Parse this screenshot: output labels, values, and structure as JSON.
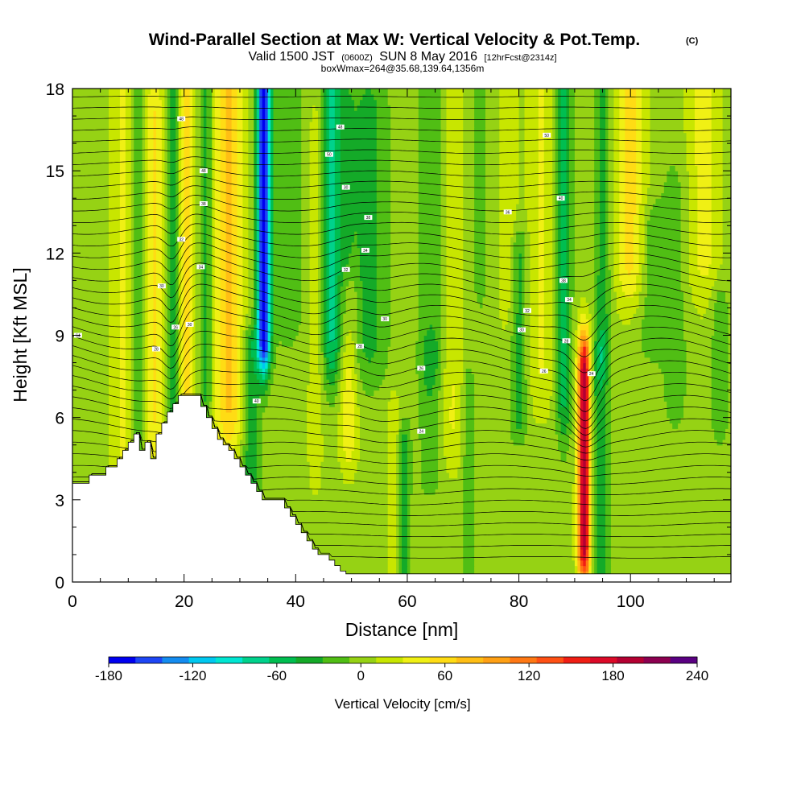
{
  "chart_data": {
    "type": "heatmap",
    "title": "Wind-Parallel Section at Max W: Vertical Velocity & Pot.Temp.",
    "title_mark": "(C)",
    "subtitle_main_a": "Valid 1500 JST",
    "subtitle_zulu": "(0600Z)",
    "subtitle_main_b": "SUN 8 May 2016",
    "subtitle_fcst": "[12hrFcst@2314z]",
    "subtitle2": "boxWmax=264@35.68,139.64,1356m",
    "xlabel": "Distance [nm]",
    "ylabel": "Height [Kft MSL]",
    "xlim": [
      0,
      118
    ],
    "ylim": [
      0,
      18
    ],
    "x_ticks": [
      "0",
      "20",
      "40",
      "60",
      "80",
      "100"
    ],
    "y_ticks": [
      "0",
      "3",
      "6",
      "9",
      "12",
      "15",
      "18"
    ],
    "colorbar": {
      "label": "Vertical Velocity [cm/s]",
      "ticks": [
        "-180",
        "-120",
        "-60",
        "0",
        "60",
        "120",
        "180",
        "240"
      ],
      "min": -180,
      "max": 240,
      "step": 20,
      "colors": [
        "#0000f0",
        "#1e46f5",
        "#148cf0",
        "#00c8f0",
        "#00e6d2",
        "#00d28c",
        "#00be50",
        "#14aa28",
        "#50be14",
        "#96d214",
        "#c8e600",
        "#f0f014",
        "#ffdc14",
        "#ffbe14",
        "#ffa014",
        "#ff7814",
        "#ff5014",
        "#f01e14",
        "#dc0a28",
        "#b40032",
        "#8c0050",
        "#5a0082"
      ]
    },
    "terrain": {
      "x": [
        0,
        3,
        3,
        6,
        6,
        8,
        8,
        9,
        9,
        10,
        10,
        11,
        11,
        12,
        12,
        13,
        13,
        14,
        14,
        15,
        15,
        16,
        16,
        17,
        17,
        18,
        18,
        19,
        19,
        20,
        20,
        21,
        21,
        22,
        22,
        23,
        23,
        24,
        24,
        25,
        25,
        26,
        26,
        27,
        27,
        28,
        28,
        29,
        29,
        30,
        30,
        31,
        31,
        32,
        32,
        33,
        33,
        34,
        34,
        35,
        35,
        36,
        36,
        37,
        37,
        38,
        38,
        39,
        39,
        40,
        40,
        41,
        41,
        42,
        42,
        43,
        43,
        44,
        44,
        45,
        45,
        46,
        46,
        47,
        47,
        48,
        48,
        49,
        49,
        50,
        50,
        51,
        51,
        52,
        52,
        118
      ],
      "y": [
        3.6,
        3.6,
        3.9,
        3.9,
        4.2,
        4.2,
        4.5,
        4.5,
        4.8,
        4.8,
        5.1,
        5.1,
        5.4,
        5.4,
        4.8,
        4.8,
        5.1,
        5.1,
        4.5,
        4.5,
        5.4,
        5.4,
        5.8,
        5.8,
        6.2,
        6.2,
        6.5,
        6.5,
        6.8,
        6.8,
        6.8,
        6.8,
        6.8,
        6.8,
        6.8,
        6.8,
        6.4,
        6.4,
        6.0,
        6.0,
        5.6,
        5.6,
        5.2,
        5.2,
        5.0,
        5.0,
        4.8,
        4.8,
        4.5,
        4.5,
        4.2,
        4.2,
        3.9,
        3.9,
        3.6,
        3.6,
        3.3,
        3.3,
        3.0,
        3.0,
        3.0,
        3.0,
        3.0,
        3.0,
        3.0,
        3.0,
        2.7,
        2.7,
        2.4,
        2.4,
        2.1,
        2.1,
        1.8,
        1.8,
        1.5,
        1.5,
        1.2,
        1.2,
        1.0,
        1.0,
        1.0,
        1.0,
        0.8,
        0.8,
        0.6,
        0.6,
        0.4,
        0.4,
        0.3,
        0.3,
        0.3,
        0.3,
        0.3,
        0.3,
        0.3,
        0.3
      ]
    },
    "w_features": [
      {
        "x": 9,
        "w": 2.2,
        "y0": 3.0,
        "y1": 18.0,
        "wb": 1.0,
        "a": 30
      },
      {
        "x": 12,
        "w": 1.4,
        "y0": 4.0,
        "y1": 18.0,
        "wb": 1.0,
        "a": -35
      },
      {
        "x": 14.5,
        "w": 1.8,
        "y0": 6.0,
        "y1": 17.0,
        "wb": 2.0,
        "a": 50
      },
      {
        "x": 18,
        "w": 1.1,
        "y0": 6.0,
        "y1": 18.0,
        "wb": 1.0,
        "a": -55
      },
      {
        "x": 20.5,
        "w": 1.4,
        "y0": 7.0,
        "y1": 18.0,
        "wb": 1.2,
        "a": 55
      },
      {
        "x": 24,
        "w": 1.2,
        "y0": 6.8,
        "y1": 18.0,
        "wb": 1.0,
        "a": -40
      },
      {
        "x": 28,
        "w": 2.6,
        "y0": 6.5,
        "y1": 18.0,
        "wb": 2.0,
        "a": 70
      },
      {
        "x": 34.3,
        "w": 1.2,
        "y0": 9.0,
        "y1": 18.0,
        "wb": 1.5,
        "a": -190
      },
      {
        "x": 32,
        "w": 1.5,
        "y0": 3.0,
        "y1": 8.5,
        "wb": 1.0,
        "a": -50
      },
      {
        "x": 38.5,
        "w": 3.5,
        "y0": 10.0,
        "y1": 18.0,
        "wb": 2.0,
        "a": -20
      },
      {
        "x": 43.5,
        "w": 1.4,
        "y0": 5.0,
        "y1": 16.0,
        "wb": 2.0,
        "a": 20
      },
      {
        "x": 46.5,
        "w": 1.6,
        "y0": 9.0,
        "y1": 18.0,
        "wb": 2.0,
        "a": -75
      },
      {
        "x": 49.5,
        "w": 1.6,
        "y0": 5.5,
        "y1": 10.0,
        "wb": 1.5,
        "a": 45
      },
      {
        "x": 49,
        "w": 1.4,
        "y0": 10.0,
        "y1": 17.0,
        "wb": 1.5,
        "a": -30
      },
      {
        "x": 53,
        "w": 3.5,
        "y0": 9.0,
        "y1": 17.0,
        "wb": 2.0,
        "a": -40
      },
      {
        "x": 57.5,
        "w": 1.0,
        "y0": 0.3,
        "y1": 6.0,
        "wb": 1.0,
        "a": 30
      },
      {
        "x": 59.5,
        "w": 1.1,
        "y0": 0.3,
        "y1": 5.0,
        "wb": 1.0,
        "a": -40
      },
      {
        "x": 64.5,
        "w": 2.4,
        "y0": 9.0,
        "y1": 18.0,
        "wb": 2.0,
        "a": -30
      },
      {
        "x": 64,
        "w": 2.0,
        "y0": 4.0,
        "y1": 8.0,
        "wb": 1.0,
        "a": -25
      },
      {
        "x": 68,
        "w": 2.0,
        "y0": 6.0,
        "y1": 18.0,
        "wb": 2.0,
        "a": 30
      },
      {
        "x": 71,
        "w": 1.0,
        "y0": 0.3,
        "y1": 7.0,
        "wb": 1.0,
        "a": -30
      },
      {
        "x": 73,
        "w": 2.0,
        "y0": 11.0,
        "y1": 18.0,
        "wb": 2.0,
        "a": -15
      },
      {
        "x": 78,
        "w": 1.6,
        "y0": 11.0,
        "y1": 18.0,
        "wb": 2.0,
        "a": 25
      },
      {
        "x": 80,
        "w": 1.5,
        "y0": 6.0,
        "y1": 12.0,
        "wb": 1.0,
        "a": -40
      },
      {
        "x": 84,
        "w": 2.5,
        "y0": 8.0,
        "y1": 18.0,
        "wb": 2.0,
        "a": 30
      },
      {
        "x": 88,
        "w": 1.4,
        "y0": 7.0,
        "y1": 18.0,
        "wb": 2.0,
        "a": -60
      },
      {
        "x": 91.7,
        "w": 1.1,
        "y0": 1.3,
        "y1": 7.7,
        "wb": 1.5,
        "a": 200
      },
      {
        "x": 94.5,
        "w": 1.6,
        "y0": 0.5,
        "y1": 8.0,
        "wb": 1.0,
        "a": -45
      },
      {
        "x": 95,
        "w": 1.3,
        "y0": 9.0,
        "y1": 18.0,
        "wb": 1.5,
        "a": -45
      },
      {
        "x": 100,
        "w": 2.5,
        "y0": 12.0,
        "y1": 18.0,
        "wb": 2.0,
        "a": 60
      },
      {
        "x": 104,
        "w": 3.0,
        "y0": 9.0,
        "y1": 13.0,
        "wb": 1.0,
        "a": -25
      },
      {
        "x": 108,
        "w": 2.5,
        "y0": 7.0,
        "y1": 14.0,
        "wb": 2.0,
        "a": -20
      },
      {
        "x": 113,
        "w": 3.0,
        "y0": 12.0,
        "y1": 18.0,
        "wb": 2.0,
        "a": 35
      },
      {
        "x": 116,
        "w": 1.5,
        "y0": 6.0,
        "y1": 10.0,
        "wb": 1.0,
        "a": -30
      }
    ],
    "contour_labels": [
      {
        "x": 1,
        "y": 9.0,
        "t": "64"
      },
      {
        "x": 19.5,
        "y": 16.9,
        "t": "48"
      },
      {
        "x": 23.5,
        "y": 15.0,
        "t": "48"
      },
      {
        "x": 23.5,
        "y": 13.8,
        "t": "38"
      },
      {
        "x": 19.5,
        "y": 12.5,
        "t": "32"
      },
      {
        "x": 23,
        "y": 11.5,
        "t": "34"
      },
      {
        "x": 16,
        "y": 10.8,
        "t": "30"
      },
      {
        "x": 18.5,
        "y": 9.3,
        "t": "26"
      },
      {
        "x": 21,
        "y": 9.4,
        "t": "30"
      },
      {
        "x": 15,
        "y": 8.5,
        "t": "28"
      },
      {
        "x": 33,
        "y": 6.6,
        "t": "40"
      },
      {
        "x": 48,
        "y": 16.6,
        "t": "48"
      },
      {
        "x": 46,
        "y": 15.6,
        "t": "50"
      },
      {
        "x": 49,
        "y": 14.4,
        "t": "30"
      },
      {
        "x": 53,
        "y": 13.3,
        "t": "38"
      },
      {
        "x": 52.5,
        "y": 12.1,
        "t": "34"
      },
      {
        "x": 49,
        "y": 11.4,
        "t": "32"
      },
      {
        "x": 56,
        "y": 9.6,
        "t": "30"
      },
      {
        "x": 51.5,
        "y": 8.6,
        "t": "28"
      },
      {
        "x": 62.5,
        "y": 7.8,
        "t": "26"
      },
      {
        "x": 62.5,
        "y": 5.5,
        "t": "24"
      },
      {
        "x": 85,
        "y": 16.3,
        "t": "50"
      },
      {
        "x": 87.5,
        "y": 14.0,
        "t": "40"
      },
      {
        "x": 78,
        "y": 13.5,
        "t": "36"
      },
      {
        "x": 88,
        "y": 11.0,
        "t": "38"
      },
      {
        "x": 89,
        "y": 10.3,
        "t": "34"
      },
      {
        "x": 81.5,
        "y": 9.9,
        "t": "32"
      },
      {
        "x": 80.5,
        "y": 9.2,
        "t": "30"
      },
      {
        "x": 88.5,
        "y": 8.8,
        "t": "28"
      },
      {
        "x": 84.5,
        "y": 7.7,
        "t": "26"
      },
      {
        "x": 93,
        "y": 7.6,
        "t": "24"
      }
    ]
  }
}
